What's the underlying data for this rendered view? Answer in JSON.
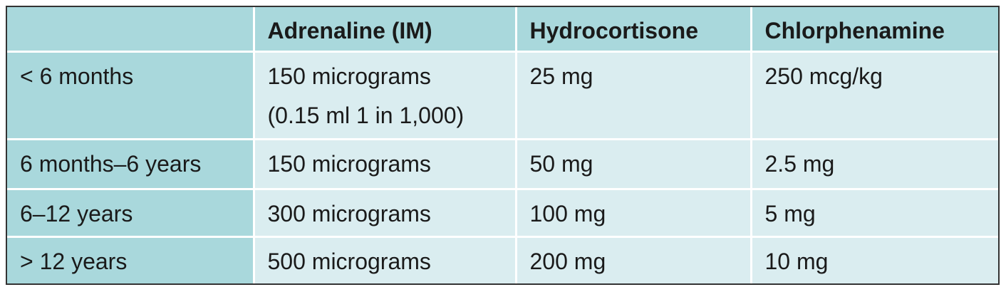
{
  "header": {
    "columns": [
      "Adrenaline (IM)",
      "Hydrocortisone",
      "Chlorphenamine"
    ]
  },
  "rows": [
    {
      "label": "< 6 months",
      "cells": [
        [
          "150 micrograms",
          "(0.15 ml 1 in 1,000)"
        ],
        "25 mg",
        "250 mcg/kg"
      ]
    },
    {
      "label": "6 months–6 years",
      "cells": [
        "150 micrograms",
        "50 mg",
        "2.5 mg"
      ]
    },
    {
      "label": "6–12 years",
      "cells": [
        "300 micrograms",
        "100 mg",
        "5 mg"
      ]
    },
    {
      "label": "> 12 years",
      "cells": [
        "500 micrograms",
        "200 mg",
        "10 mg"
      ]
    }
  ]
}
